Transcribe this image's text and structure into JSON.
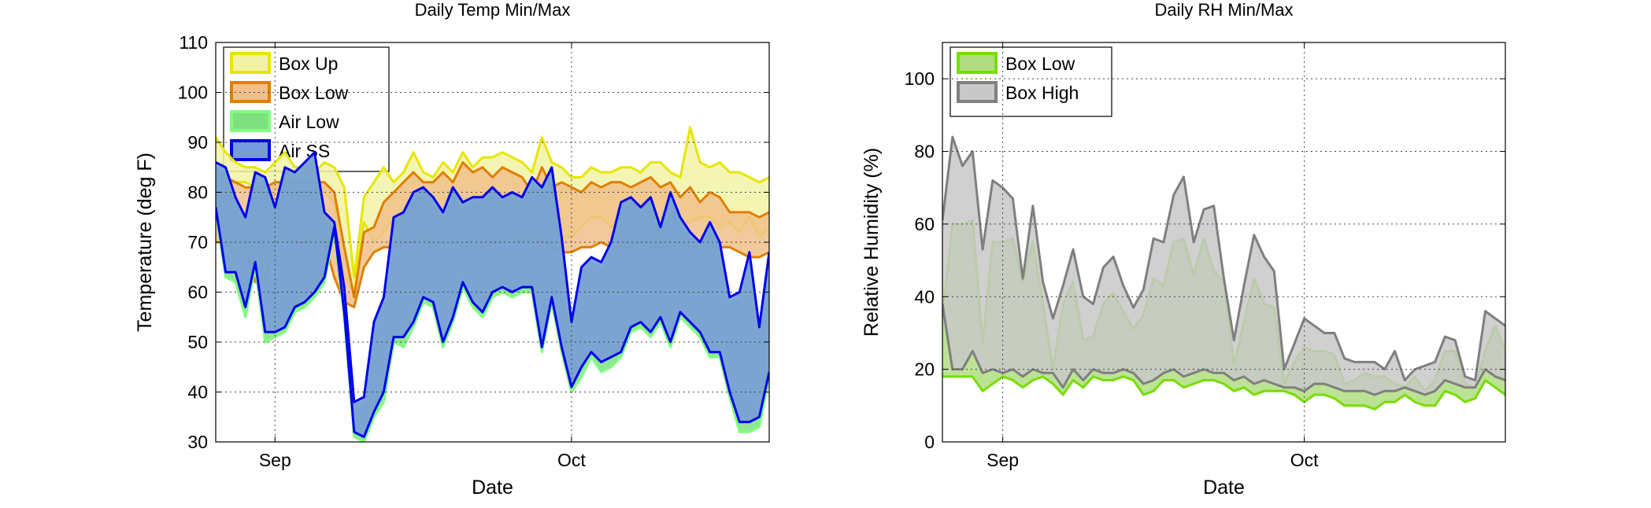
{
  "chart_data": [
    {
      "type": "area",
      "title": "Daily Temp Min/Max",
      "xlabel": "Date",
      "ylabel": "Temperature (deg F)",
      "xlim": [
        "2011-08-26",
        "2011-10-21"
      ],
      "ylim": [
        30,
        110
      ],
      "yticks": [
        30,
        40,
        50,
        60,
        70,
        80,
        90,
        100,
        110
      ],
      "xticks": [
        {
          "date": "2011-09-01",
          "label": "Sep"
        },
        {
          "date": "2011-10-01",
          "label": "Oct"
        }
      ],
      "grid": true,
      "legend_position": "top-left",
      "x": [
        "2011-08-26",
        "2011-08-27",
        "2011-08-28",
        "2011-08-29",
        "2011-08-30",
        "2011-08-31",
        "2011-09-01",
        "2011-09-02",
        "2011-09-03",
        "2011-09-04",
        "2011-09-05",
        "2011-09-06",
        "2011-09-07",
        "2011-09-08",
        "2011-09-09",
        "2011-09-10",
        "2011-09-11",
        "2011-09-12",
        "2011-09-13",
        "2011-09-14",
        "2011-09-15",
        "2011-09-16",
        "2011-09-17",
        "2011-09-18",
        "2011-09-19",
        "2011-09-20",
        "2011-09-21",
        "2011-09-22",
        "2011-09-23",
        "2011-09-24",
        "2011-09-25",
        "2011-09-26",
        "2011-09-27",
        "2011-09-28",
        "2011-09-29",
        "2011-09-30",
        "2011-10-01",
        "2011-10-02",
        "2011-10-03",
        "2011-10-04",
        "2011-10-05",
        "2011-10-06",
        "2011-10-07",
        "2011-10-08",
        "2011-10-09",
        "2011-10-10",
        "2011-10-11",
        "2011-10-12",
        "2011-10-13",
        "2011-10-14",
        "2011-10-15",
        "2011-10-16",
        "2011-10-17",
        "2011-10-18",
        "2011-10-19",
        "2011-10-20",
        "2011-10-21"
      ],
      "series": [
        {
          "name": "Box Up",
          "color": "#e6e600",
          "fill": "#f2f2a6",
          "max": [
            91,
            88,
            86,
            85,
            85,
            84,
            86,
            88,
            85,
            85,
            84,
            86,
            85,
            81,
            63,
            79,
            82,
            85,
            82,
            84,
            88,
            84,
            83,
            86,
            84,
            88,
            85,
            87,
            87,
            88,
            87,
            86,
            84,
            91,
            86,
            85,
            83,
            83,
            85,
            84,
            84,
            85,
            85,
            84,
            86,
            86,
            84,
            83,
            93,
            86,
            85,
            86,
            84,
            84,
            83,
            82,
            83
          ],
          "min": [
            82,
            82,
            82,
            82,
            81,
            81,
            81,
            80,
            81,
            80,
            82,
            80,
            78,
            63,
            60,
            74,
            70,
            72,
            75,
            73,
            73,
            72,
            73,
            74,
            76,
            73,
            72,
            73,
            74,
            74,
            72,
            73,
            75,
            73,
            72,
            71,
            71,
            73,
            75,
            75,
            73,
            76,
            74,
            74,
            75,
            75,
            75,
            74,
            74,
            75,
            75,
            73,
            74,
            72,
            75,
            71,
            73
          ]
        },
        {
          "name": "Box Low",
          "color": "#e07f00",
          "fill": "#f0c08a",
          "max": [
            83,
            83,
            82,
            81,
            81,
            81,
            82,
            82,
            82,
            82,
            82,
            82,
            80,
            69,
            59,
            72,
            73,
            78,
            80,
            82,
            84,
            82,
            82,
            84,
            82,
            86,
            84,
            85,
            83,
            85,
            84,
            83,
            80,
            85,
            81,
            82,
            81,
            80,
            82,
            81,
            82,
            82,
            81,
            82,
            83,
            81,
            82,
            79,
            81,
            78,
            80,
            79,
            76,
            76,
            76,
            75,
            76
          ],
          "min": [
            70,
            70,
            67,
            69,
            62,
            63,
            70,
            71,
            70,
            70,
            71,
            70,
            63,
            58,
            57,
            65,
            68,
            69,
            69,
            70,
            70,
            71,
            69,
            70,
            70,
            69,
            69,
            69,
            70,
            70,
            71,
            70,
            71,
            70,
            69,
            68,
            68,
            69,
            69,
            70,
            69,
            69,
            69,
            70,
            69,
            69,
            69,
            70,
            69,
            69,
            69,
            69,
            69,
            68,
            67,
            67,
            68
          ]
        },
        {
          "name": "Air Low",
          "color": "#7fff7f",
          "fill": "#7fe07f",
          "max": [
            85,
            84,
            78,
            74,
            84,
            82,
            76,
            84,
            83,
            85,
            87,
            75,
            73,
            60,
            37,
            38,
            53,
            58,
            74,
            75,
            79,
            80,
            78,
            75,
            80,
            77,
            78,
            78,
            80,
            78,
            79,
            78,
            82,
            80,
            84,
            70,
            53,
            64,
            66,
            65,
            69,
            77,
            78,
            76,
            78,
            72,
            79,
            74,
            71,
            69,
            73,
            69,
            58,
            59,
            67,
            52,
            67
          ],
          "min": [
            76,
            63,
            62,
            55,
            65,
            50,
            51,
            52,
            56,
            57,
            59,
            62,
            72,
            55,
            31,
            30,
            35,
            38,
            50,
            49,
            53,
            58,
            57,
            49,
            54,
            61,
            57,
            55,
            59,
            60,
            59,
            60,
            60,
            48,
            58,
            48,
            40,
            43,
            47,
            44,
            45,
            47,
            52,
            53,
            51,
            54,
            49,
            55,
            53,
            51,
            47,
            47,
            39,
            32,
            32,
            33,
            43
          ]
        },
        {
          "name": "Air SS",
          "color": "#0000ee",
          "fill": "#7799dd",
          "max": [
            86,
            85,
            79,
            75,
            84,
            83,
            77,
            85,
            84,
            86,
            88,
            76,
            74,
            61,
            38,
            39,
            54,
            59,
            75,
            76,
            80,
            81,
            79,
            76,
            81,
            78,
            79,
            79,
            81,
            79,
            80,
            79,
            83,
            81,
            85,
            71,
            54,
            65,
            67,
            66,
            70,
            78,
            79,
            77,
            79,
            73,
            80,
            75,
            72,
            70,
            74,
            70,
            59,
            60,
            68,
            53,
            68
          ],
          "min": [
            77,
            64,
            64,
            57,
            66,
            52,
            52,
            53,
            57,
            58,
            60,
            63,
            73,
            56,
            32,
            31,
            36,
            40,
            51,
            51,
            54,
            59,
            58,
            50,
            55,
            62,
            58,
            56,
            60,
            61,
            60,
            61,
            61,
            49,
            59,
            49,
            41,
            45,
            48,
            46,
            47,
            48,
            53,
            54,
            52,
            55,
            50,
            56,
            54,
            52,
            48,
            48,
            40,
            34,
            34,
            35,
            44
          ]
        }
      ]
    },
    {
      "type": "area",
      "title": "Daily RH Min/Max",
      "xlabel": "Date",
      "ylabel": "Relative Humidity (%)",
      "xlim": [
        "2011-08-26",
        "2011-10-21"
      ],
      "ylim": [
        0,
        110
      ],
      "yticks": [
        0,
        20,
        40,
        60,
        80,
        100
      ],
      "xticks": [
        {
          "date": "2011-09-01",
          "label": "Sep"
        },
        {
          "date": "2011-10-01",
          "label": "Oct"
        }
      ],
      "grid": true,
      "legend_position": "top-left",
      "x": [
        "2011-08-26",
        "2011-08-27",
        "2011-08-28",
        "2011-08-29",
        "2011-08-30",
        "2011-08-31",
        "2011-09-01",
        "2011-09-02",
        "2011-09-03",
        "2011-09-04",
        "2011-09-05",
        "2011-09-06",
        "2011-09-07",
        "2011-09-08",
        "2011-09-09",
        "2011-09-10",
        "2011-09-11",
        "2011-09-12",
        "2011-09-13",
        "2011-09-14",
        "2011-09-15",
        "2011-09-16",
        "2011-09-17",
        "2011-09-18",
        "2011-09-19",
        "2011-09-20",
        "2011-09-21",
        "2011-09-22",
        "2011-09-23",
        "2011-09-24",
        "2011-09-25",
        "2011-09-26",
        "2011-09-27",
        "2011-09-28",
        "2011-09-29",
        "2011-09-30",
        "2011-10-01",
        "2011-10-02",
        "2011-10-03",
        "2011-10-04",
        "2011-10-05",
        "2011-10-06",
        "2011-10-07",
        "2011-10-08",
        "2011-10-09",
        "2011-10-10",
        "2011-10-11",
        "2011-10-12",
        "2011-10-13",
        "2011-10-14",
        "2011-10-15",
        "2011-10-16",
        "2011-10-17",
        "2011-10-18",
        "2011-10-19",
        "2011-10-20",
        "2011-10-21"
      ],
      "series": [
        {
          "name": "Box Low",
          "color": "#77dd00",
          "fill": "#b0dd80",
          "max": [
            34,
            60,
            60,
            61,
            27,
            55,
            55,
            56,
            44,
            55,
            38,
            20,
            38,
            44,
            28,
            29,
            38,
            41,
            36,
            31,
            35,
            45,
            43,
            55,
            56,
            46,
            56,
            47,
            44,
            21,
            33,
            45,
            38,
            37,
            16,
            22,
            26,
            25,
            25,
            24,
            16,
            17,
            19,
            18,
            18,
            16,
            15,
            18,
            14,
            17,
            25,
            25,
            16,
            15,
            25,
            32,
            25
          ],
          "min": [
            18,
            18,
            18,
            18,
            14,
            16,
            18,
            17,
            15,
            17,
            18,
            16,
            13,
            17,
            15,
            18,
            17,
            17,
            18,
            17,
            13,
            14,
            17,
            17,
            15,
            16,
            17,
            17,
            16,
            14,
            15,
            13,
            14,
            14,
            14,
            13,
            11,
            13,
            13,
            12,
            10,
            10,
            10,
            9,
            11,
            11,
            13,
            11,
            10,
            10,
            14,
            13,
            11,
            12,
            17,
            15,
            13
          ]
        },
        {
          "name": "Box High",
          "color": "#7f7f7f",
          "fill": "#c8c8c8",
          "max": [
            61,
            84,
            76,
            80,
            53,
            72,
            70,
            67,
            45,
            65,
            44,
            34,
            43,
            53,
            40,
            38,
            48,
            51,
            43,
            37,
            42,
            56,
            55,
            68,
            73,
            55,
            64,
            65,
            45,
            28,
            43,
            57,
            51,
            47,
            20,
            27,
            34,
            32,
            30,
            30,
            23,
            22,
            22,
            22,
            20,
            25,
            17,
            20,
            21,
            22,
            29,
            28,
            18,
            17,
            36,
            34,
            32
          ],
          "min": [
            38,
            20,
            20,
            25,
            19,
            20,
            19,
            20,
            18,
            20,
            19,
            19,
            15,
            20,
            17,
            20,
            19,
            19,
            20,
            19,
            16,
            17,
            19,
            20,
            18,
            19,
            20,
            19,
            19,
            17,
            18,
            16,
            17,
            16,
            15,
            15,
            14,
            16,
            16,
            15,
            14,
            14,
            14,
            13,
            14,
            14,
            15,
            14,
            13,
            14,
            17,
            16,
            15,
            15,
            20,
            18,
            17
          ]
        }
      ]
    }
  ]
}
